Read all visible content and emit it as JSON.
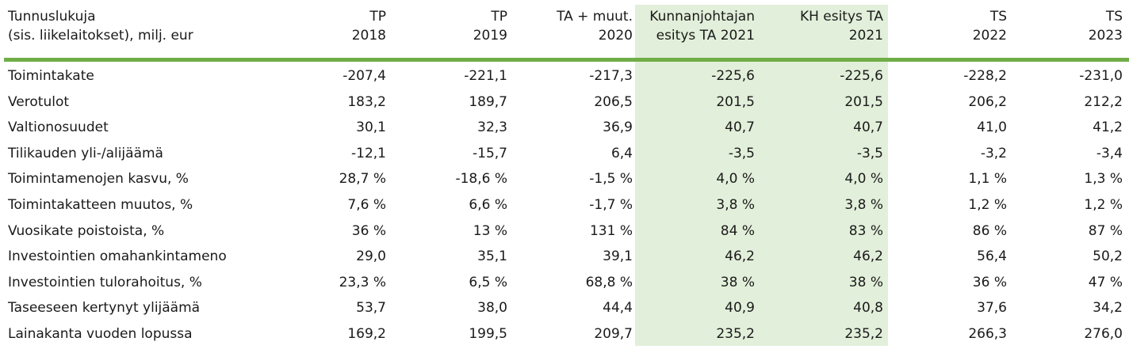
{
  "table": {
    "highlight_color": "#e2efda",
    "rule_color": "#70ad47",
    "header": {
      "label_line1": "Tunnuslukuja",
      "label_line2": "(sis. liikelaitokset), milj. eur",
      "columns": [
        {
          "line1": "TP",
          "line2": "2018"
        },
        {
          "line1": "TP",
          "line2": "2019"
        },
        {
          "line1": "TA + muut.",
          "line2": "2020"
        },
        {
          "line1": "Kunnanjohtajan",
          "line2": "esitys TA 2021"
        },
        {
          "line1": "KH esitys TA",
          "line2": "2021"
        },
        {
          "line1": "TS",
          "line2": "2022"
        },
        {
          "line1": "TS",
          "line2": "2023"
        }
      ]
    },
    "rows": [
      {
        "label": "Toimintakate",
        "values": [
          "-207,4",
          "-221,1",
          "-217,3",
          "-225,6",
          "-225,6",
          "-228,2",
          "-231,0"
        ]
      },
      {
        "label": "Verotulot",
        "values": [
          "183,2",
          "189,7",
          "206,5",
          "201,5",
          "201,5",
          "206,2",
          "212,2"
        ]
      },
      {
        "label": "Valtionosuudet",
        "values": [
          "30,1",
          "32,3",
          "36,9",
          "40,7",
          "40,7",
          "41,0",
          "41,2"
        ]
      },
      {
        "label": "Tilikauden yli-/alijäämä",
        "values": [
          "-12,1",
          "-15,7",
          "6,4",
          "-3,5",
          "-3,5",
          "-3,2",
          "-3,4"
        ]
      },
      {
        "label": "Toimintamenojen kasvu, %",
        "values": [
          "28,7 %",
          "-18,6 %",
          "-1,5 %",
          "4,0 %",
          "4,0 %",
          "1,1 %",
          "1,3 %"
        ]
      },
      {
        "label": "Toimintakatteen muutos, %",
        "values": [
          "7,6 %",
          "6,6 %",
          "-1,7 %",
          "3,8 %",
          "3,8 %",
          "1,2 %",
          "1,2 %"
        ]
      },
      {
        "label": "Vuosikate poistoista, %",
        "values": [
          "36 %",
          "13 %",
          "131 %",
          "84 %",
          "83 %",
          "86 %",
          "87 %"
        ]
      },
      {
        "label": "Investointien omahankintameno",
        "values": [
          "29,0",
          "35,1",
          "39,1",
          "46,2",
          "46,2",
          "56,4",
          "50,2"
        ]
      },
      {
        "label": "Investointien tulorahoitus, %",
        "values": [
          "23,3 %",
          "6,5 %",
          "68,8 %",
          "38 %",
          "38 %",
          "36 %",
          "47 %"
        ]
      },
      {
        "label": "Taseeseen kertynyt ylijäämä",
        "values": [
          "53,7",
          "38,0",
          "44,4",
          "40,9",
          "40,8",
          "37,6",
          "34,2"
        ]
      },
      {
        "label": "Lainakanta vuoden lopussa",
        "values": [
          "169,2",
          "199,5",
          "209,7",
          "235,2",
          "235,2",
          "266,3",
          "276,0"
        ]
      }
    ]
  }
}
